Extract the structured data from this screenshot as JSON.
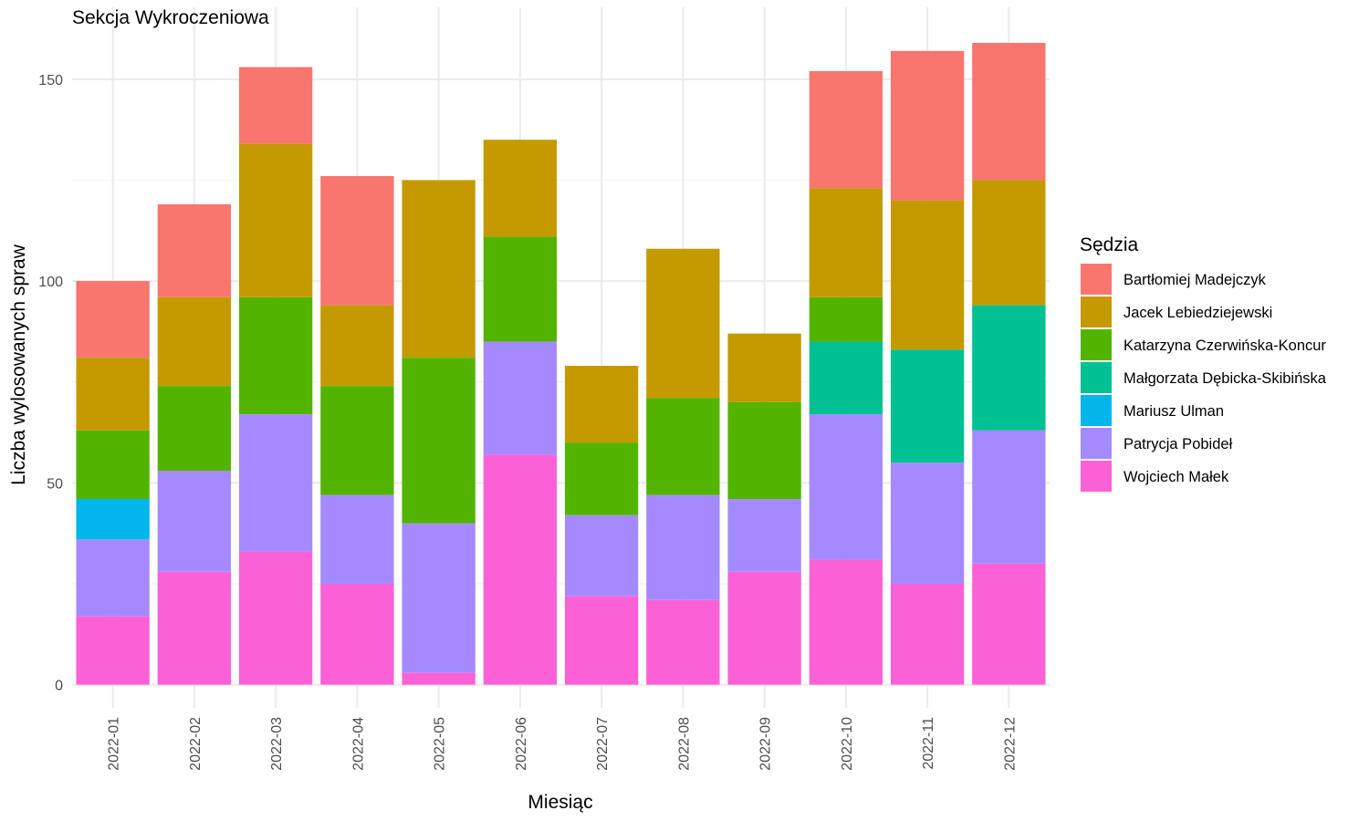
{
  "chart_data": {
    "type": "bar",
    "stacked": true,
    "title": "Sekcja Wykroczeniowa",
    "xlabel": "Miesiąc",
    "ylabel": "Liczba wylosowanych spraw",
    "ylim": [
      -5,
      162
    ],
    "yticks": [
      0,
      50,
      100,
      150
    ],
    "grid": true,
    "legend_title": "Sędzia",
    "legend_position": "right",
    "categories": [
      "2022-01",
      "2022-02",
      "2022-03",
      "2022-04",
      "2022-05",
      "2022-06",
      "2022-07",
      "2022-08",
      "2022-09",
      "2022-10",
      "2022-11",
      "2022-12"
    ],
    "series": [
      {
        "name": "Wojciech Małek",
        "color": "#FB61D7",
        "values": [
          17,
          28,
          33,
          25,
          3,
          57,
          22,
          21,
          28,
          31,
          25,
          30
        ]
      },
      {
        "name": "Patrycja Pobideł",
        "color": "#A58AFF",
        "values": [
          19,
          25,
          34,
          22,
          37,
          28,
          20,
          26,
          18,
          36,
          30,
          33
        ]
      },
      {
        "name": "Mariusz Ulman",
        "color": "#00B6EB",
        "values": [
          10,
          0,
          0,
          0,
          0,
          0,
          0,
          0,
          0,
          0,
          0,
          0
        ]
      },
      {
        "name": "Małgorzata Dębicka-Skibińska",
        "color": "#00C094",
        "values": [
          0,
          0,
          0,
          0,
          0,
          0,
          0,
          0,
          0,
          18,
          28,
          31
        ]
      },
      {
        "name": "Katarzyna Czerwińska-Koncur",
        "color": "#53B400",
        "values": [
          17,
          21,
          29,
          27,
          41,
          26,
          18,
          24,
          24,
          11,
          0,
          0
        ]
      },
      {
        "name": "Jacek Lebiedziejewski",
        "color": "#C49A00",
        "values": [
          18,
          22,
          38,
          20,
          44,
          24,
          19,
          37,
          17,
          27,
          37,
          31
        ]
      },
      {
        "name": "Bartłomiej Madejczyk",
        "color": "#F8766D",
        "values": [
          19,
          23,
          19,
          32,
          0,
          0,
          0,
          0,
          0,
          29,
          37,
          34
        ]
      }
    ],
    "legend_order": [
      "Bartłomiej Madejczyk",
      "Jacek Lebiedziejewski",
      "Katarzyna Czerwińska-Koncur",
      "Małgorzata Dębicka-Skibińska",
      "Mariusz Ulman",
      "Patrycja Pobideł",
      "Wojciech Małek"
    ]
  }
}
